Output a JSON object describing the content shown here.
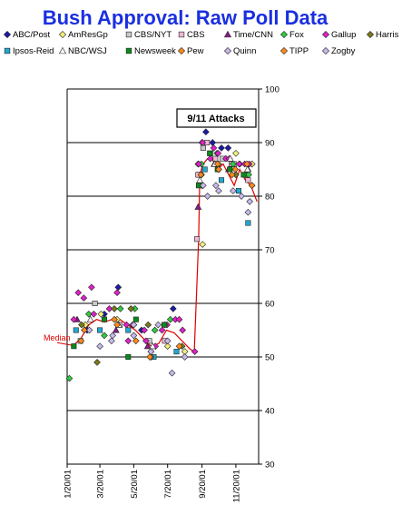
{
  "chart_data": {
    "type": "scatter",
    "title": "Bush Approval:  Raw Poll Data",
    "ylim": [
      30,
      100
    ],
    "yticks": [
      30,
      40,
      50,
      60,
      70,
      80,
      90,
      100
    ],
    "xlim": [
      "2001-01-20",
      "2001-12-31"
    ],
    "xtick_labels": [
      "1/20/01",
      "3/20/01",
      "5/20/01",
      "7/20/01",
      "9/20/01",
      "11/20/01"
    ],
    "xtick_dates": [
      "2001-01-20",
      "2001-03-20",
      "2001-05-20",
      "2001-07-20",
      "2001-09-20",
      "2001-11-20"
    ],
    "grid": "horizontal",
    "legend_position": "top",
    "annotation": {
      "text": "9/11 Attacks",
      "date": "2001-09-11"
    },
    "series": [
      {
        "name": "ABC/Post",
        "marker": "diamond",
        "color": "#1b1ba8",
        "points": [
          [
            "2001-02-25",
            55
          ],
          [
            "2001-03-28",
            58
          ],
          [
            "2001-04-22",
            63
          ],
          [
            "2001-06-03",
            55
          ],
          [
            "2001-07-30",
            59
          ],
          [
            "2001-09-13",
            86
          ],
          [
            "2001-09-20",
            90
          ],
          [
            "2001-09-27",
            92
          ],
          [
            "2001-10-09",
            90
          ],
          [
            "2001-10-25",
            89
          ],
          [
            "2001-11-06",
            89
          ],
          [
            "2001-11-27",
            86
          ],
          [
            "2001-12-19",
            86
          ]
        ]
      },
      {
        "name": "AmResGp",
        "marker": "diamond",
        "color": "#f2f07a",
        "points": [
          [
            "2001-02-22",
            56
          ],
          [
            "2001-03-22",
            58
          ],
          [
            "2001-04-20",
            57
          ],
          [
            "2001-05-20",
            56
          ],
          [
            "2001-06-20",
            51
          ],
          [
            "2001-07-20",
            52
          ],
          [
            "2001-08-20",
            51
          ],
          [
            "2001-09-21",
            71
          ],
          [
            "2001-10-20",
            86
          ],
          [
            "2001-11-20",
            88
          ],
          [
            "2001-12-19",
            86
          ]
        ]
      },
      {
        "name": "CBS/NYT",
        "marker": "square",
        "color": "#c8c8c8",
        "points": [
          [
            "2001-03-11",
            60
          ],
          [
            "2001-06-17",
            53
          ],
          [
            "2001-09-14",
            84
          ],
          [
            "2001-09-22",
            89
          ],
          [
            "2001-10-05",
            88
          ],
          [
            "2001-10-27",
            87
          ],
          [
            "2001-11-17",
            86
          ],
          [
            "2001-12-08",
            84
          ]
        ]
      },
      {
        "name": "CBS",
        "marker": "square",
        "color": "#f0b8d4",
        "points": [
          [
            "2001-02-13",
            53
          ],
          [
            "2001-04-25",
            56
          ],
          [
            "2001-07-15",
            53
          ],
          [
            "2001-09-11",
            72
          ],
          [
            "2001-09-13",
            84
          ],
          [
            "2001-09-29",
            90
          ],
          [
            "2001-10-14",
            87
          ],
          [
            "2001-11-12",
            86
          ],
          [
            "2001-12-12",
            83
          ]
        ]
      },
      {
        "name": "Time/CNN",
        "marker": "triangle",
        "color": "#8a1a8a",
        "points": [
          [
            "2001-02-07",
            57
          ],
          [
            "2001-04-18",
            55
          ],
          [
            "2001-06-14",
            52
          ],
          [
            "2001-09-13",
            78
          ],
          [
            "2001-10-12",
            86
          ],
          [
            "2001-11-07",
            85
          ],
          [
            "2001-12-12",
            85
          ]
        ]
      },
      {
        "name": "Fox",
        "marker": "diamond",
        "color": "#2ecc40",
        "points": [
          [
            "2001-01-24",
            46
          ],
          [
            "2001-02-28",
            58
          ],
          [
            "2001-03-28",
            54
          ],
          [
            "2001-04-26",
            59
          ],
          [
            "2001-05-22",
            59
          ],
          [
            "2001-06-27",
            55
          ],
          [
            "2001-07-25",
            57
          ],
          [
            "2001-09-19",
            86
          ],
          [
            "2001-10-17",
            88
          ],
          [
            "2001-11-15",
            86
          ],
          [
            "2001-12-13",
            84
          ]
        ]
      },
      {
        "name": "Gallup",
        "marker": "diamond",
        "color": "#e020c8",
        "points": [
          [
            "2001-02-01",
            57
          ],
          [
            "2001-02-09",
            62
          ],
          [
            "2001-02-19",
            61
          ],
          [
            "2001-03-05",
            63
          ],
          [
            "2001-03-09",
            58
          ],
          [
            "2001-04-06",
            59
          ],
          [
            "2001-04-20",
            62
          ],
          [
            "2001-05-07",
            56
          ],
          [
            "2001-05-10",
            53
          ],
          [
            "2001-05-18",
            56
          ],
          [
            "2001-06-08",
            55
          ],
          [
            "2001-06-11",
            53
          ],
          [
            "2001-06-28",
            52
          ],
          [
            "2001-07-10",
            55
          ],
          [
            "2001-07-19",
            56
          ],
          [
            "2001-08-03",
            57
          ],
          [
            "2001-08-10",
            57
          ],
          [
            "2001-08-16",
            55
          ],
          [
            "2001-09-07",
            51
          ],
          [
            "2001-09-14",
            86
          ],
          [
            "2001-09-21",
            90
          ],
          [
            "2001-10-05",
            87
          ],
          [
            "2001-10-11",
            89
          ],
          [
            "2001-10-19",
            88
          ],
          [
            "2001-11-02",
            87
          ],
          [
            "2001-11-08",
            87
          ],
          [
            "2001-11-26",
            86
          ],
          [
            "2001-12-06",
            86
          ],
          [
            "2001-12-14",
            86
          ]
        ]
      },
      {
        "name": "Harris",
        "marker": "diamond",
        "color": "#7a7a1a",
        "points": [
          [
            "2001-02-15",
            56
          ],
          [
            "2001-03-15",
            49
          ],
          [
            "2001-04-15",
            59
          ],
          [
            "2001-05-15",
            59
          ],
          [
            "2001-06-15",
            56
          ],
          [
            "2001-07-15",
            56
          ],
          [
            "2001-08-15",
            52
          ],
          [
            "2001-09-20",
            82
          ],
          [
            "2001-10-20",
            85
          ],
          [
            "2001-11-20",
            84
          ],
          [
            "2001-12-19",
            82
          ]
        ]
      },
      {
        "name": "Ipsos-Reid",
        "marker": "square",
        "color": "#22a8d0",
        "points": [
          [
            "2001-02-05",
            55
          ],
          [
            "2001-03-20",
            55
          ],
          [
            "2001-05-10",
            55
          ],
          [
            "2001-06-25",
            50
          ],
          [
            "2001-08-05",
            51
          ],
          [
            "2001-09-25",
            85
          ],
          [
            "2001-10-25",
            83
          ],
          [
            "2001-11-25",
            81
          ],
          [
            "2001-12-12",
            75
          ]
        ]
      },
      {
        "name": "NBC/WSJ",
        "marker": "triangle",
        "color": "#ffffff",
        "points": [
          [
            "2001-03-03",
            57
          ],
          [
            "2001-04-23",
            56
          ],
          [
            "2001-06-23",
            52
          ],
          [
            "2001-09-16",
            83
          ],
          [
            "2001-10-13",
            86
          ],
          [
            "2001-11-10",
            87
          ],
          [
            "2001-12-11",
            85
          ]
        ]
      },
      {
        "name": "Newsweek",
        "marker": "square",
        "color": "#0a8a1a",
        "points": [
          [
            "2001-02-01",
            52
          ],
          [
            "2001-03-28",
            57
          ],
          [
            "2001-05-10",
            50
          ],
          [
            "2001-05-24",
            57
          ],
          [
            "2001-07-14",
            56
          ],
          [
            "2001-09-14",
            82
          ],
          [
            "2001-10-04",
            88
          ],
          [
            "2001-10-18",
            85
          ],
          [
            "2001-11-09",
            85
          ],
          [
            "2001-12-04",
            84
          ]
        ]
      },
      {
        "name": "Pew",
        "marker": "diamond",
        "color": "#ff8a1a",
        "points": [
          [
            "2001-02-14",
            53
          ],
          [
            "2001-04-20",
            56
          ],
          [
            "2001-05-24",
            53
          ],
          [
            "2001-06-20",
            50
          ],
          [
            "2001-09-19",
            84
          ],
          [
            "2001-10-18",
            86
          ],
          [
            "2001-11-13",
            84
          ],
          [
            "2001-12-10",
            86
          ]
        ]
      },
      {
        "name": "Quinn",
        "marker": "diamond",
        "color": "#c8b8ec",
        "points": [
          [
            "2001-03-01",
            55
          ],
          [
            "2001-04-12",
            54
          ],
          [
            "2001-05-20",
            56
          ],
          [
            "2001-07-03",
            56
          ],
          [
            "2001-07-28",
            47
          ],
          [
            "2001-09-30",
            80
          ],
          [
            "2001-10-20",
            81
          ],
          [
            "2001-11-30",
            80
          ],
          [
            "2001-12-12",
            77
          ]
        ]
      },
      {
        "name": "TIPP",
        "marker": "diamond",
        "color": "#ff8a1a",
        "points": [
          [
            "2001-02-20",
            55
          ],
          [
            "2001-04-15",
            57
          ],
          [
            "2001-06-18",
            50
          ],
          [
            "2001-08-10",
            52
          ],
          [
            "2001-09-18",
            84
          ],
          [
            "2001-10-20",
            85
          ],
          [
            "2001-11-19",
            85
          ],
          [
            "2001-12-19",
            82
          ]
        ]
      },
      {
        "name": "Zogby",
        "marker": "diamond",
        "color": "#c8b8ec",
        "points": [
          [
            "2001-03-20",
            52
          ],
          [
            "2001-04-10",
            53
          ],
          [
            "2001-05-20",
            54
          ],
          [
            "2001-06-20",
            51
          ],
          [
            "2001-07-20",
            53
          ],
          [
            "2001-08-20",
            50
          ],
          [
            "2001-09-22",
            82
          ],
          [
            "2001-10-15",
            82
          ],
          [
            "2001-11-15",
            81
          ],
          [
            "2001-12-15",
            79
          ]
        ]
      }
    ],
    "median_line": {
      "name": "Median",
      "color": "#e00000",
      "points": [
        [
          "2001-01-30",
          52
        ],
        [
          "2001-02-14",
          53.5
        ],
        [
          "2001-02-28",
          56
        ],
        [
          "2001-03-14",
          57
        ],
        [
          "2001-03-28",
          56.5
        ],
        [
          "2001-04-11",
          57
        ],
        [
          "2001-04-25",
          57
        ],
        [
          "2001-05-09",
          56
        ],
        [
          "2001-05-23",
          55
        ],
        [
          "2001-06-06",
          53.5
        ],
        [
          "2001-06-20",
          52
        ],
        [
          "2001-07-04",
          52.5
        ],
        [
          "2001-07-18",
          55
        ],
        [
          "2001-08-01",
          54.5
        ],
        [
          "2001-08-15",
          53
        ],
        [
          "2001-08-29",
          51.5
        ],
        [
          "2001-09-06",
          51
        ],
        [
          "2001-09-14",
          72
        ],
        [
          "2001-09-16",
          84
        ],
        [
          "2001-09-22",
          86
        ],
        [
          "2001-09-30",
          87
        ],
        [
          "2001-10-08",
          87
        ],
        [
          "2001-10-18",
          85
        ],
        [
          "2001-10-28",
          86
        ],
        [
          "2001-11-07",
          84
        ],
        [
          "2001-11-17",
          82
        ],
        [
          "2001-11-27",
          85
        ],
        [
          "2001-12-07",
          83
        ],
        [
          "2001-12-17",
          82
        ],
        [
          "2001-12-28",
          79
        ]
      ]
    }
  }
}
